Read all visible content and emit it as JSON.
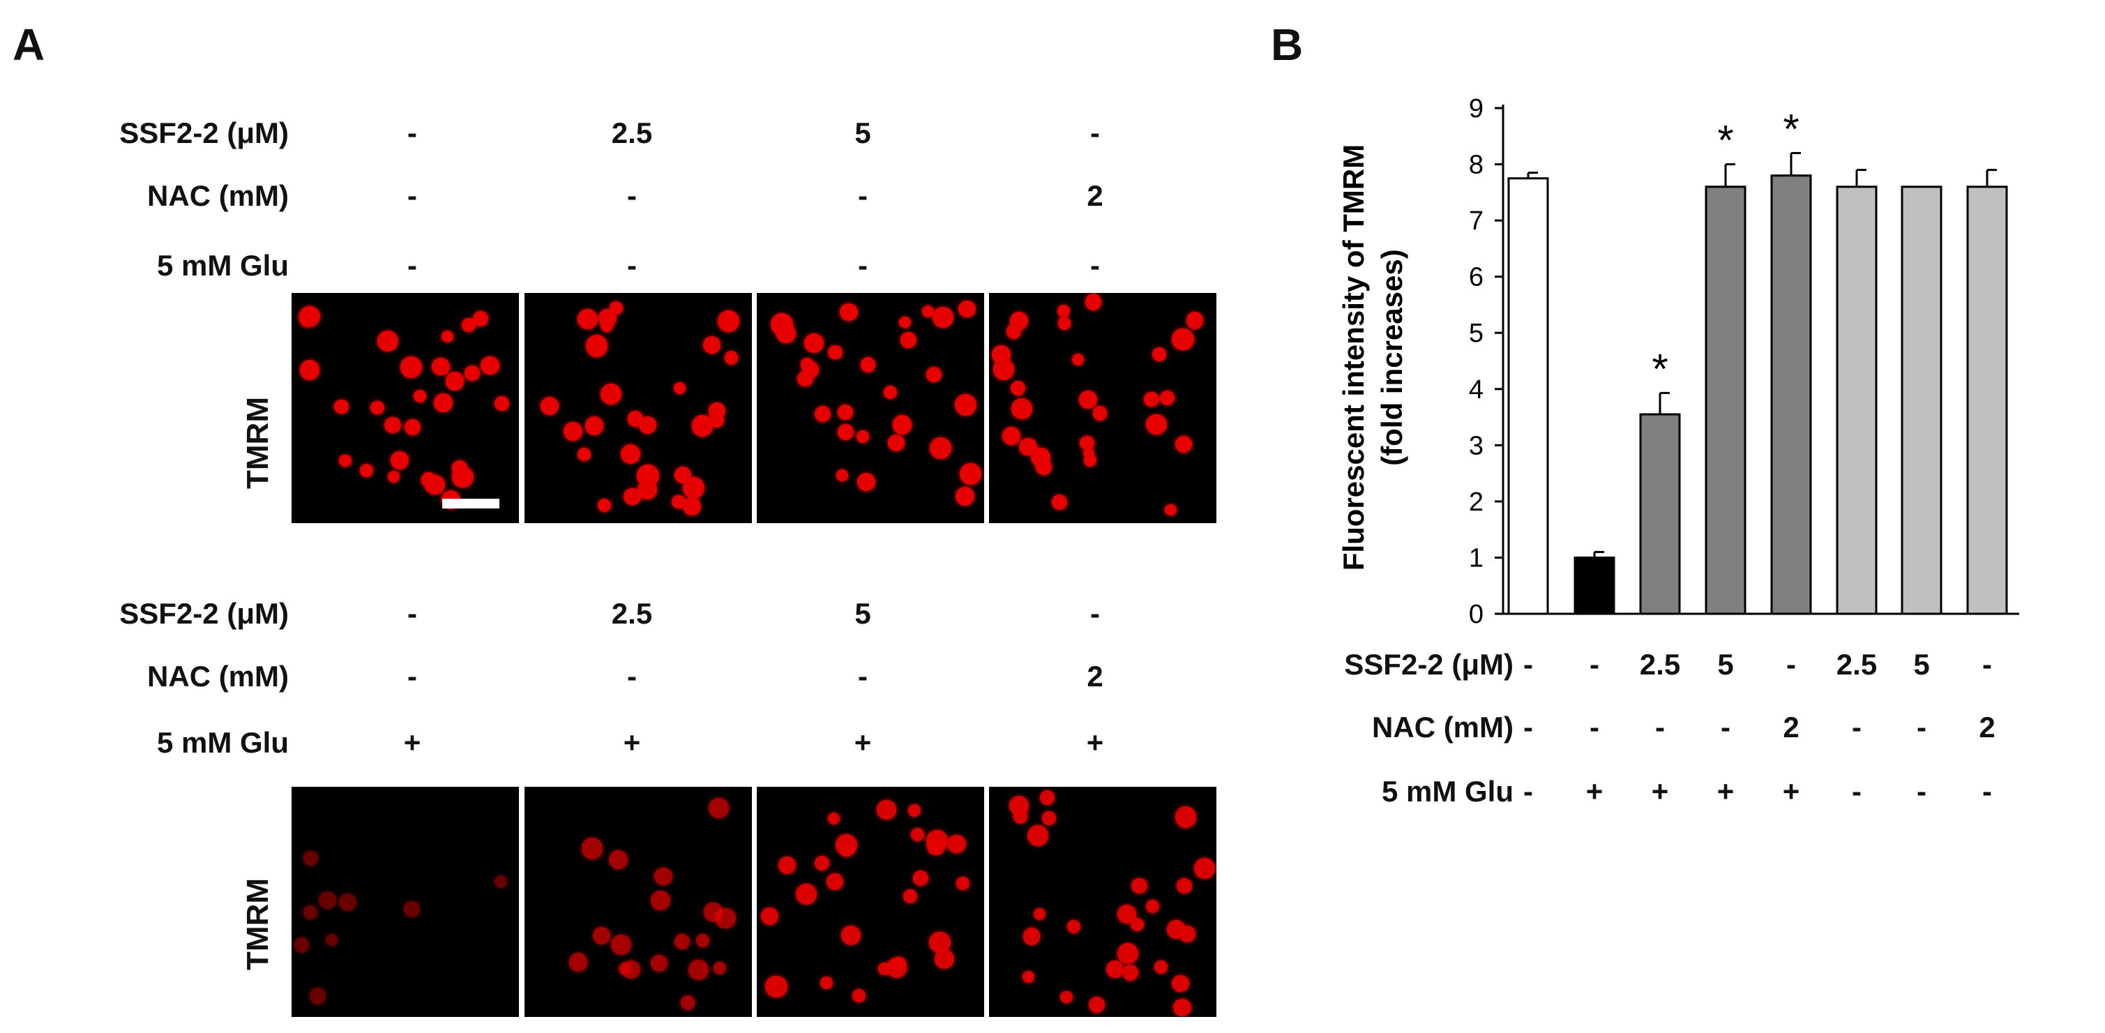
{
  "panel_a": {
    "letter": "A",
    "conditions": [
      "SSF2-2 (μM)",
      "NAC (mM)",
      "5 mM Glu"
    ],
    "top_block": {
      "values": [
        [
          "-",
          "2.5",
          "5",
          "-"
        ],
        [
          "-",
          "-",
          "-",
          "2"
        ],
        [
          "-",
          "-",
          "-",
          "-"
        ]
      ],
      "image_label": "TMRM",
      "fluorescence_levels": [
        1.0,
        1.0,
        1.0,
        1.0
      ]
    },
    "bottom_block": {
      "values": [
        [
          "-",
          "2.5",
          "5",
          "-"
        ],
        [
          "-",
          "-",
          "-",
          "2"
        ],
        [
          "+",
          "+",
          "+",
          "+"
        ]
      ],
      "image_label": "TMRM",
      "fluorescence_levels": [
        0.15,
        0.55,
        0.9,
        0.9
      ]
    },
    "colors": {
      "cell": "#e60000",
      "background": "#000000",
      "scale_bar": "#ffffff"
    }
  },
  "panel_b": {
    "letter": "B",
    "condition_labels": [
      "SSF2-2 (μM)",
      "NAC (mM)",
      "5 mM Glu"
    ],
    "condition_table": [
      [
        "-",
        "-",
        "2.5",
        "5",
        "-",
        "2.5",
        "5",
        "-"
      ],
      [
        "-",
        "-",
        "-",
        "-",
        "2",
        "-",
        "-",
        "2"
      ],
      [
        "-",
        "+",
        "+",
        "+",
        "+",
        "-",
        "-",
        "-"
      ]
    ],
    "asterisk": "*"
  },
  "chart_data": {
    "type": "bar",
    "ylabel": "Fluorescent intensity of TMRM",
    "ylabel_sub": "(fold increases)",
    "ylim": [
      0,
      9
    ],
    "yticks": [
      "0",
      "1",
      "2",
      "3",
      "4",
      "5",
      "6",
      "7",
      "8",
      "9"
    ],
    "grid": false,
    "values": [
      7.75,
      1.0,
      3.55,
      7.6,
      7.8,
      7.6,
      7.6,
      7.6
    ],
    "errors": [
      0.1,
      0.1,
      0.38,
      0.4,
      0.4,
      0.3,
      0.0,
      0.3
    ],
    "significant": [
      false,
      false,
      true,
      true,
      true,
      false,
      false,
      false
    ],
    "bar_colors": [
      "#ffffff",
      "#000000",
      "#808080",
      "#808080",
      "#808080",
      "#c0c0c0",
      "#c0c0c0",
      "#c0c0c0"
    ]
  }
}
